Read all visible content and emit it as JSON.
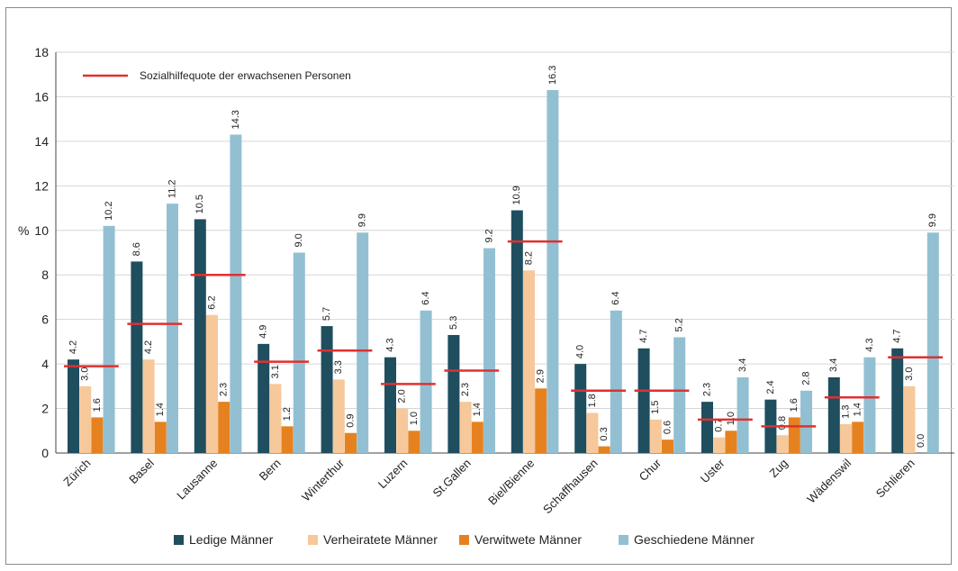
{
  "chart_data": {
    "type": "bar",
    "ylabel": "%",
    "ylim": [
      0,
      18
    ],
    "yticks": [
      0,
      2,
      4,
      6,
      8,
      10,
      12,
      14,
      16,
      18
    ],
    "grid": true,
    "categories": [
      "Zürich",
      "Basel",
      "Lausanne",
      "Bern",
      "Winterthur",
      "Luzern",
      "St.Gallen",
      "Biel/Bienne",
      "Schaffhausen",
      "Chur",
      "Uster",
      "Zug",
      "Wädenswil",
      "Schlieren"
    ],
    "series": [
      {
        "name": "Ledige Männer",
        "color": "#1f4e5f",
        "values": [
          4.2,
          8.6,
          10.5,
          4.9,
          5.7,
          4.3,
          5.3,
          10.9,
          4.0,
          4.7,
          2.3,
          2.4,
          3.4,
          4.7
        ]
      },
      {
        "name": "Verheiratete Männer",
        "color": "#f6c89a",
        "values": [
          3.0,
          4.2,
          6.2,
          3.1,
          3.3,
          2.0,
          2.3,
          8.2,
          1.8,
          1.5,
          0.7,
          0.8,
          1.3,
          3.0
        ]
      },
      {
        "name": "Verwitwete Männer",
        "color": "#e5821f",
        "values": [
          1.6,
          1.4,
          2.3,
          1.2,
          0.9,
          1.0,
          1.4,
          2.9,
          0.3,
          0.6,
          1.0,
          1.6,
          1.4,
          0.0
        ]
      },
      {
        "name": "Geschiedene Männer",
        "color": "#92c0d2",
        "values": [
          10.2,
          11.2,
          14.3,
          9.0,
          9.9,
          6.4,
          9.2,
          16.3,
          6.4,
          5.2,
          3.4,
          2.8,
          4.3,
          9.9
        ]
      }
    ],
    "reference_line": {
      "name": "Sozialhilfequote der erwachsenen Personen",
      "color": "#e03030",
      "values": [
        3.9,
        5.8,
        8.0,
        4.1,
        4.6,
        3.1,
        3.7,
        9.5,
        2.8,
        2.8,
        1.5,
        1.2,
        2.5,
        4.3
      ]
    },
    "legend_position": "bottom"
  }
}
